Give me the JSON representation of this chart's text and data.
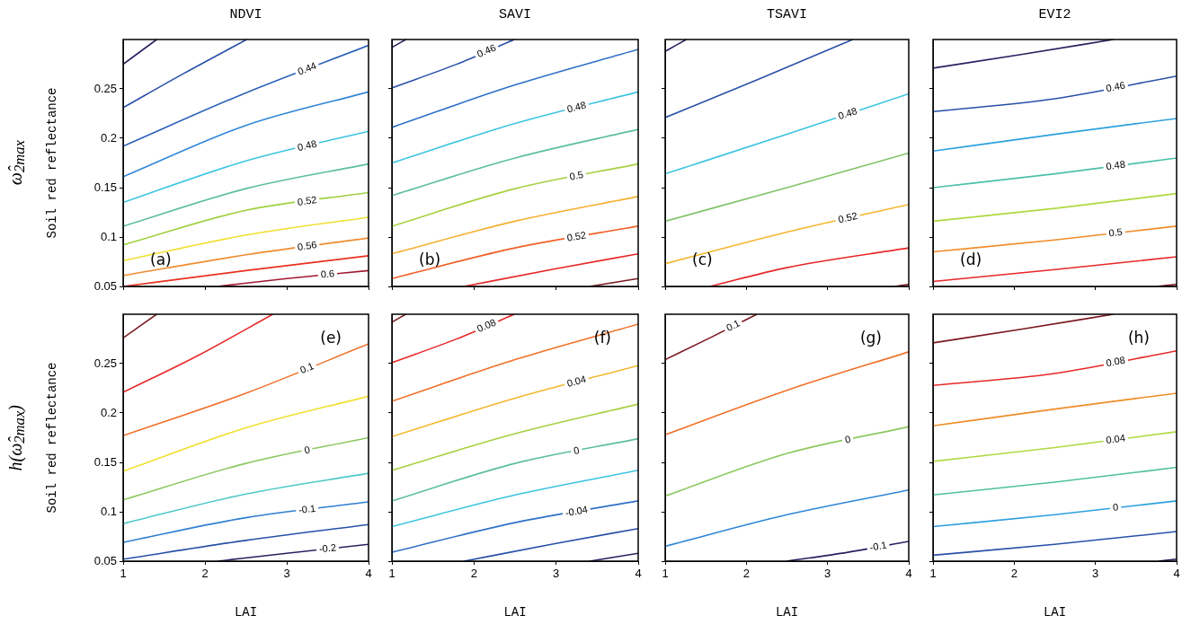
{
  "chart_data": [
    {
      "type": "line",
      "title": "NDVI",
      "ylabel": "Soil red reflectance",
      "annotations": [
        "(a)",
        "ω̂$_{2max}$"
      ],
      "xlim": [
        1,
        4
      ],
      "xticks": [
        1,
        2,
        3,
        4
      ],
      "ylim": [
        0.05,
        0.3
      ],
      "yticks": [
        0.05,
        0.1,
        0.15,
        0.2,
        0.25
      ],
      "tick_labels": "y",
      "series": [
        {
          "color": "#2b2060",
          "x": [
            1,
            1.41
          ],
          "values": [
            0.275,
            0.3
          ]
        },
        {
          "color": "#2850a8",
          "x": [
            1,
            1.75,
            2.51
          ],
          "values": [
            0.231,
            0.266,
            0.3
          ]
        },
        {
          "name": "0.44",
          "color": "#2b62b8",
          "x": [
            1,
            2.5,
            4
          ],
          "values": [
            0.192,
            0.246,
            0.294
          ]
        },
        {
          "color": "#2f86d8",
          "x": [
            1,
            2.5,
            4
          ],
          "values": [
            0.161,
            0.213,
            0.247
          ]
        },
        {
          "name": "0.48",
          "color": "#3cc4e0",
          "x": [
            1,
            2.5,
            4
          ],
          "values": [
            0.135,
            0.177,
            0.207
          ]
        },
        {
          "color": "#5cbf98",
          "x": [
            1,
            2.5,
            4
          ],
          "values": [
            0.111,
            0.149,
            0.174
          ]
        },
        {
          "name": "0.52",
          "color": "#a0d040",
          "x": [
            1,
            2.5,
            4
          ],
          "values": [
            0.092,
            0.127,
            0.145
          ]
        },
        {
          "color": "#f0e030",
          "x": [
            1,
            2.5,
            4
          ],
          "values": [
            0.076,
            0.102,
            0.12
          ]
        },
        {
          "name": "0.56",
          "color": "#f08c30",
          "x": [
            1,
            2.5,
            4
          ],
          "values": [
            0.061,
            0.082,
            0.099
          ]
        },
        {
          "color": "#e83020",
          "x": [
            1,
            2.5,
            4
          ],
          "values": [
            0.05,
            0.066,
            0.081
          ]
        },
        {
          "name": "0.6",
          "color": "#a01830",
          "x": [
            2.16,
            3,
            4
          ],
          "values": [
            0.05,
            0.058,
            0.066
          ]
        }
      ]
    },
    {
      "type": "line",
      "title": "SAVI",
      "annotations": [
        "(b)"
      ],
      "xlim": [
        1,
        4
      ],
      "xticks": [
        1,
        2,
        3,
        4
      ],
      "ylim": [
        0.05,
        0.3
      ],
      "yticks": [
        0.05,
        0.1,
        0.15,
        0.2,
        0.25
      ],
      "tick_labels": false,
      "series": [
        {
          "color": "#2b2060",
          "x": [
            1,
            1.17
          ],
          "values": [
            0.292,
            0.3
          ]
        },
        {
          "name": "0.46",
          "color": "#2850a8",
          "x": [
            1,
            1.82,
            2.49
          ],
          "values": [
            0.251,
            0.276,
            0.3
          ]
        },
        {
          "color": "#2f6fc8",
          "x": [
            1,
            2.5,
            4
          ],
          "values": [
            0.211,
            0.254,
            0.29
          ]
        },
        {
          "name": "0.48",
          "color": "#3cc4e0",
          "x": [
            1,
            2.5,
            4
          ],
          "values": [
            0.175,
            0.215,
            0.247
          ]
        },
        {
          "color": "#5cbf98",
          "x": [
            1,
            2.5,
            4
          ],
          "values": [
            0.142,
            0.18,
            0.209
          ]
        },
        {
          "name": "0.5",
          "color": "#a8d040",
          "x": [
            1,
            2.5,
            4
          ],
          "values": [
            0.111,
            0.149,
            0.174
          ]
        },
        {
          "color": "#f4b030",
          "x": [
            1,
            2.5,
            4
          ],
          "values": [
            0.083,
            0.116,
            0.141
          ]
        },
        {
          "name": "0.52",
          "color": "#f06028",
          "x": [
            1,
            2.5,
            4
          ],
          "values": [
            0.058,
            0.089,
            0.111
          ]
        },
        {
          "color": "#e82828",
          "x": [
            1.88,
            3,
            4
          ],
          "values": [
            0.05,
            0.068,
            0.083
          ]
        },
        {
          "color": "#7a1820",
          "x": [
            3.41,
            4
          ],
          "values": [
            0.05,
            0.058
          ]
        }
      ]
    },
    {
      "type": "line",
      "title": "TSAVI",
      "annotations": [
        "(c)"
      ],
      "xlim": [
        1,
        4
      ],
      "xticks": [
        1,
        2,
        3,
        4
      ],
      "ylim": [
        0.05,
        0.3
      ],
      "yticks": [
        0.05,
        0.1,
        0.15,
        0.2,
        0.25
      ],
      "tick_labels": false,
      "series": [
        {
          "color": "#2b2060",
          "x": [
            1,
            1.26
          ],
          "values": [
            0.288,
            0.3
          ]
        },
        {
          "color": "#2850a8",
          "x": [
            1,
            2.13,
            3.31
          ],
          "values": [
            0.221,
            0.259,
            0.3
          ]
        },
        {
          "name": "0.48",
          "color": "#3cc4e0",
          "x": [
            1,
            2.5,
            4
          ],
          "values": [
            0.164,
            0.204,
            0.245
          ]
        },
        {
          "color": "#80c468",
          "x": [
            1,
            2.5,
            4
          ],
          "values": [
            0.116,
            0.15,
            0.185
          ]
        },
        {
          "name": "0.52",
          "color": "#f4b830",
          "x": [
            1,
            2.5,
            4
          ],
          "values": [
            0.073,
            0.105,
            0.133
          ]
        },
        {
          "color": "#e82828",
          "x": [
            1.55,
            2.5,
            4
          ],
          "values": [
            0.05,
            0.069,
            0.089
          ]
        },
        {
          "color": "#7a1820",
          "x": [
            3.83,
            4
          ],
          "values": [
            0.05,
            0.052
          ]
        }
      ]
    },
    {
      "type": "line",
      "title": "EVI2",
      "annotations": [
        "(d)"
      ],
      "xlim": [
        1,
        4
      ],
      "xticks": [
        1,
        2,
        3,
        4
      ],
      "ylim": [
        0.05,
        0.3
      ],
      "yticks": [
        0.05,
        0.1,
        0.15,
        0.2,
        0.25
      ],
      "tick_labels": false,
      "series": [
        {
          "color": "#2b2060",
          "x": [
            1,
            2.1,
            3.22
          ],
          "values": [
            0.271,
            0.285,
            0.3
          ]
        },
        {
          "name": "0.46",
          "color": "#2850a8",
          "x": [
            1,
            2.5,
            4
          ],
          "values": [
            0.227,
            0.24,
            0.263
          ]
        },
        {
          "color": "#2ea0e0",
          "x": [
            1,
            2.5,
            4
          ],
          "values": [
            0.187,
            0.204,
            0.22
          ]
        },
        {
          "name": "0.48",
          "color": "#4cc0a8",
          "x": [
            1,
            2.5,
            4
          ],
          "values": [
            0.15,
            0.164,
            0.18
          ]
        },
        {
          "color": "#b0d840",
          "x": [
            1,
            2.5,
            4
          ],
          "values": [
            0.116,
            0.129,
            0.144
          ]
        },
        {
          "name": "0.5",
          "color": "#f08c28",
          "x": [
            1,
            2.5,
            4
          ],
          "values": [
            0.085,
            0.097,
            0.111
          ]
        },
        {
          "color": "#e82828",
          "x": [
            1,
            2.5,
            4
          ],
          "values": [
            0.055,
            0.067,
            0.08
          ]
        },
        {
          "color": "#7a1820",
          "x": [
            3.76,
            4
          ],
          "values": [
            0.05,
            0.052
          ]
        }
      ]
    },
    {
      "type": "line",
      "xlabel": "LAI",
      "ylabel": "Soil red reflectance",
      "annotations": [
        "(e)",
        "h(ω̂$_{2max}$)"
      ],
      "xlim": [
        1,
        4
      ],
      "xticks": [
        1,
        2,
        3,
        4
      ],
      "ylim": [
        0.05,
        0.3
      ],
      "yticks": [
        0.05,
        0.1,
        0.15,
        0.2,
        0.25
      ],
      "series": [
        {
          "color": "#7a1820",
          "x": [
            1,
            1.41
          ],
          "values": [
            0.276,
            0.3
          ]
        },
        {
          "color": "#e82828",
          "x": [
            1,
            1.91,
            2.83
          ],
          "values": [
            0.221,
            0.258,
            0.3
          ]
        },
        {
          "name": "0.1",
          "color": "#f07028",
          "x": [
            1,
            2.5,
            4
          ],
          "values": [
            0.177,
            0.22,
            0.27
          ]
        },
        {
          "color": "#f0e030",
          "x": [
            1,
            2.5,
            4
          ],
          "values": [
            0.141,
            0.185,
            0.217
          ]
        },
        {
          "name": "0",
          "color": "#8cc860",
          "x": [
            1,
            2.5,
            4
          ],
          "values": [
            0.112,
            0.149,
            0.175
          ]
        },
        {
          "color": "#50c8c8",
          "x": [
            1,
            2.5,
            4
          ],
          "values": [
            0.088,
            0.118,
            0.139
          ]
        },
        {
          "name": "-0.1",
          "color": "#2f7fd0",
          "x": [
            1,
            2.5,
            4
          ],
          "values": [
            0.069,
            0.094,
            0.11
          ]
        },
        {
          "color": "#2850a8",
          "x": [
            1,
            2.5,
            4
          ],
          "values": [
            0.052,
            0.071,
            0.087
          ]
        },
        {
          "name": "-0.2",
          "color": "#2b2060",
          "x": [
            2.16,
            3,
            4
          ],
          "values": [
            0.05,
            0.058,
            0.067
          ]
        }
      ]
    },
    {
      "type": "line",
      "xlabel": "LAI",
      "annotations": [
        "(f)"
      ],
      "xlim": [
        1,
        4
      ],
      "xticks": [
        1,
        2,
        3,
        4
      ],
      "ylim": [
        0.05,
        0.3
      ],
      "yticks": [
        0.05,
        0.1,
        0.15,
        0.2,
        0.25
      ],
      "tick_labels": "x",
      "series": [
        {
          "color": "#7a1820",
          "x": [
            1,
            1.17
          ],
          "values": [
            0.292,
            0.3
          ]
        },
        {
          "name": "0.08",
          "color": "#e82828",
          "x": [
            1,
            1.82,
            2.49
          ],
          "values": [
            0.251,
            0.276,
            0.3
          ]
        },
        {
          "color": "#f07028",
          "x": [
            1,
            2.5,
            4
          ],
          "values": [
            0.212,
            0.254,
            0.29
          ]
        },
        {
          "name": "0.04",
          "color": "#f4b830",
          "x": [
            1,
            2.5,
            4
          ],
          "values": [
            0.176,
            0.215,
            0.248
          ]
        },
        {
          "color": "#a8d040",
          "x": [
            1,
            2.5,
            4
          ],
          "values": [
            0.142,
            0.179,
            0.209
          ]
        },
        {
          "name": "0",
          "color": "#5cbf98",
          "x": [
            1,
            2.5,
            4
          ],
          "values": [
            0.111,
            0.149,
            0.174
          ]
        },
        {
          "color": "#3cc4e0",
          "x": [
            1,
            2.5,
            4
          ],
          "values": [
            0.085,
            0.117,
            0.142
          ]
        },
        {
          "name": "-0.04",
          "color": "#2f70c8",
          "x": [
            1,
            2.5,
            4
          ],
          "values": [
            0.059,
            0.089,
            0.111
          ]
        },
        {
          "color": "#2850a8",
          "x": [
            1.88,
            3,
            4
          ],
          "values": [
            0.05,
            0.068,
            0.083
          ]
        },
        {
          "color": "#2b2060",
          "x": [
            3.41,
            4
          ],
          "values": [
            0.05,
            0.058
          ]
        }
      ]
    },
    {
      "type": "line",
      "xlabel": "LAI",
      "annotations": [
        "(g)"
      ],
      "xlim": [
        1,
        4
      ],
      "xticks": [
        1,
        2,
        3,
        4
      ],
      "ylim": [
        0.05,
        0.3
      ],
      "yticks": [
        0.05,
        0.1,
        0.15,
        0.2,
        0.25
      ],
      "tick_labels": "x",
      "series": [
        {
          "name": "0.1",
          "color": "#7a1820",
          "x": [
            1,
            1.55,
            2.13
          ],
          "values": [
            0.254,
            0.276,
            0.3
          ]
        },
        {
          "color": "#f07028",
          "x": [
            1,
            2.5,
            4
          ],
          "values": [
            0.178,
            0.223,
            0.262
          ]
        },
        {
          "name": "0",
          "color": "#8cc860",
          "x": [
            1,
            2.5,
            4
          ],
          "values": [
            0.116,
            0.159,
            0.186
          ]
        },
        {
          "color": "#2f86d8",
          "x": [
            1,
            2.5,
            4
          ],
          "values": [
            0.065,
            0.097,
            0.122
          ]
        },
        {
          "name": "-0.1",
          "color": "#2b2060",
          "x": [
            2.5,
            3.25,
            4
          ],
          "values": [
            0.05,
            0.059,
            0.07
          ]
        }
      ]
    },
    {
      "type": "line",
      "xlabel": "LAI",
      "annotations": [
        "(h)"
      ],
      "xlim": [
        1,
        4
      ],
      "xticks": [
        1,
        2,
        3,
        4
      ],
      "ylim": [
        0.05,
        0.3
      ],
      "yticks": [
        0.05,
        0.1,
        0.15,
        0.2,
        0.25
      ],
      "tick_labels": "x",
      "series": [
        {
          "color": "#7a1820",
          "x": [
            1,
            2.1,
            3.22
          ],
          "values": [
            0.271,
            0.285,
            0.3
          ]
        },
        {
          "name": "0.08",
          "color": "#e82828",
          "x": [
            1,
            2.5,
            4
          ],
          "values": [
            0.228,
            0.24,
            0.263
          ]
        },
        {
          "color": "#f08c28",
          "x": [
            1,
            2.5,
            4
          ],
          "values": [
            0.187,
            0.204,
            0.22
          ]
        },
        {
          "name": "0.04",
          "color": "#b0d840",
          "x": [
            1,
            2.5,
            4
          ],
          "values": [
            0.151,
            0.165,
            0.181
          ]
        },
        {
          "color": "#50c0a0",
          "x": [
            1,
            2.5,
            4
          ],
          "values": [
            0.117,
            0.13,
            0.145
          ]
        },
        {
          "name": "0",
          "color": "#2ea0e0",
          "x": [
            1,
            2.5,
            4
          ],
          "values": [
            0.085,
            0.097,
            0.111
          ]
        },
        {
          "color": "#2850a8",
          "x": [
            1,
            2.5,
            4
          ],
          "values": [
            0.056,
            0.067,
            0.08
          ]
        },
        {
          "color": "#2b2060",
          "x": [
            3.78,
            4
          ],
          "values": [
            0.05,
            0.052
          ]
        }
      ]
    }
  ]
}
